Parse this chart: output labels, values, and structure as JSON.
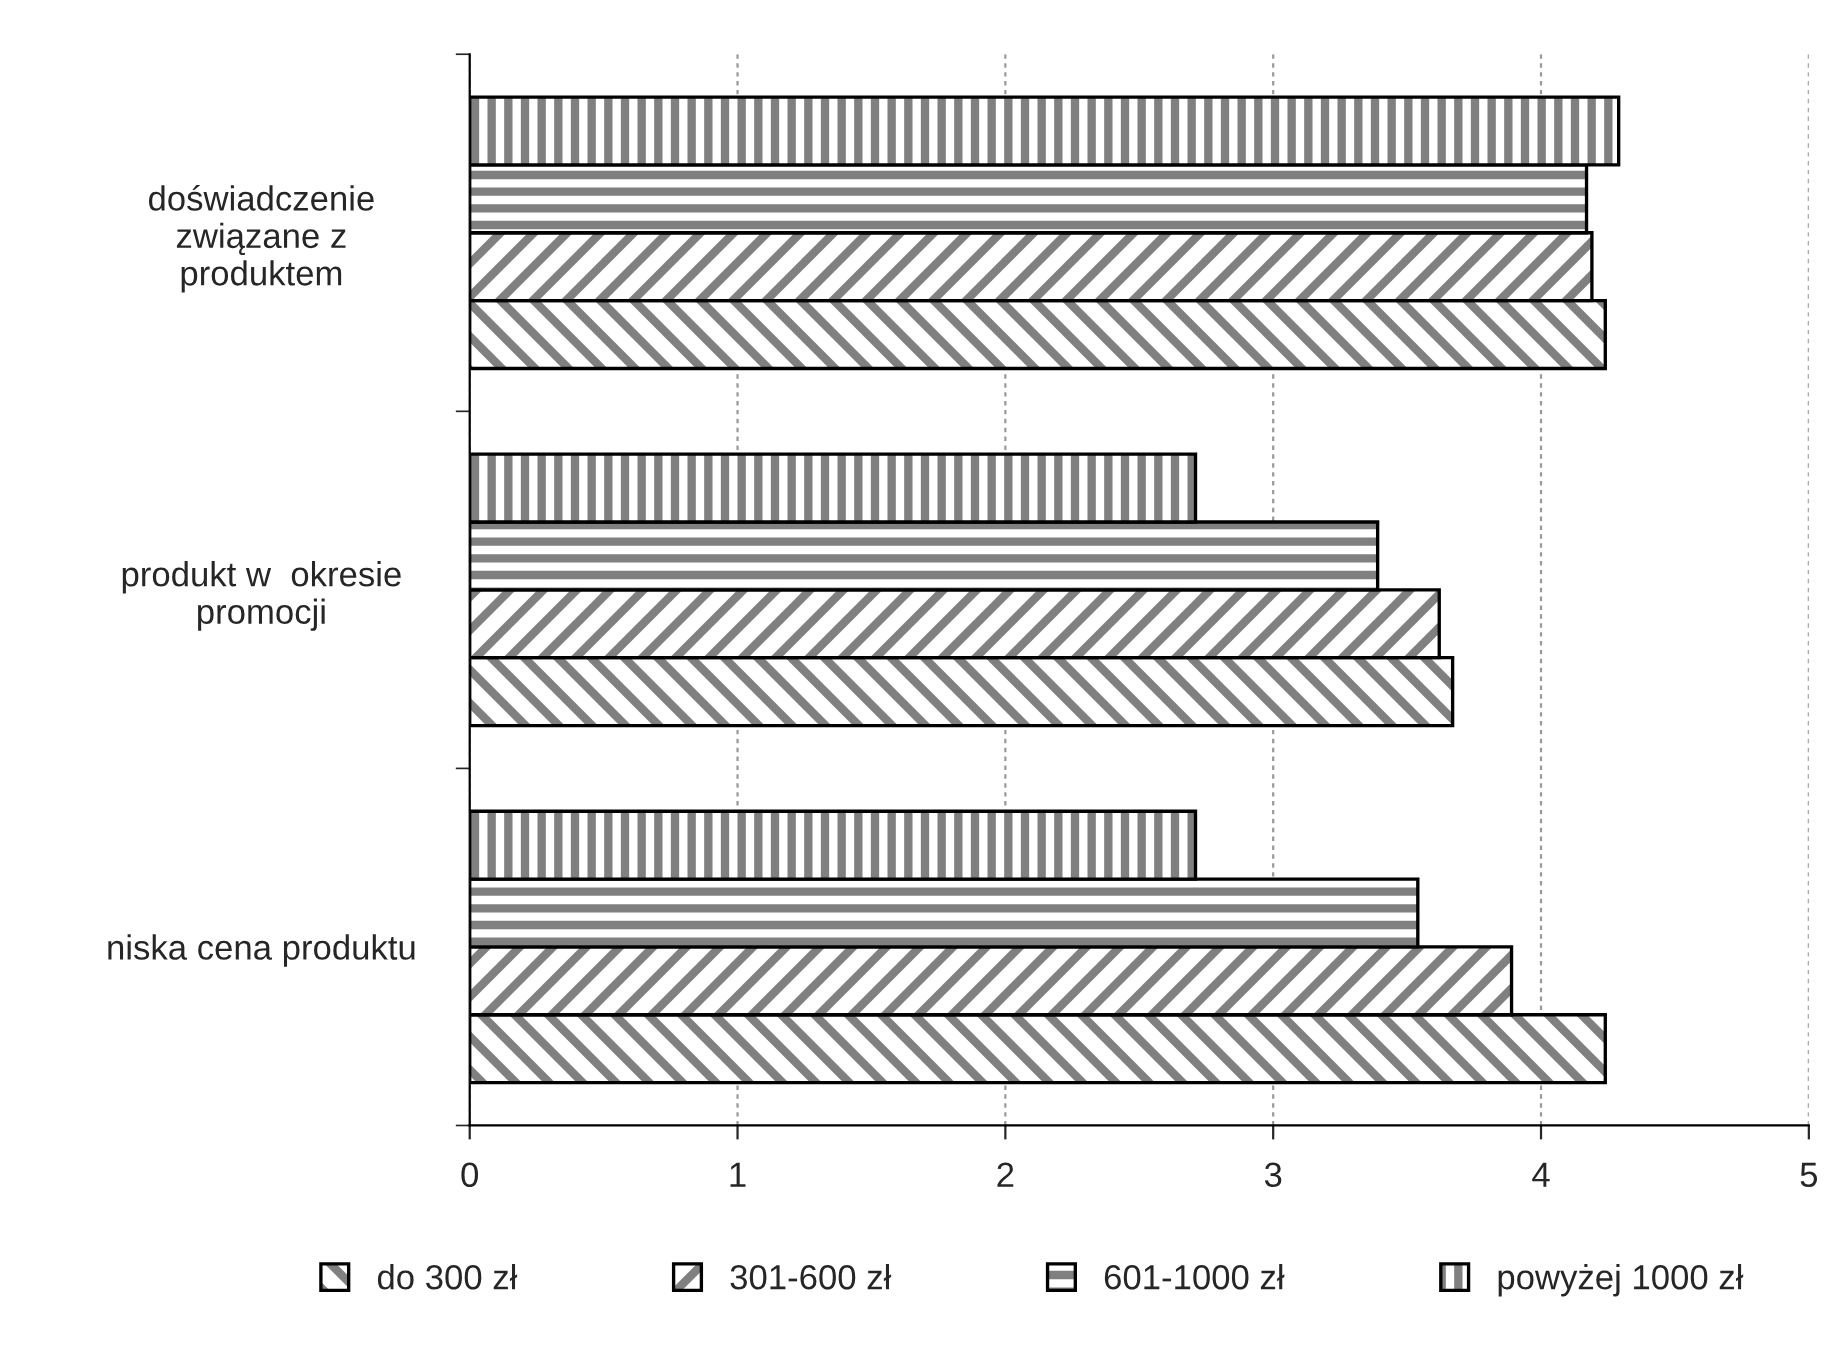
{
  "chart_data": {
    "type": "bar",
    "orientation": "horizontal",
    "categories": [
      "doświadczenie\nzwiązane z\nproduktem",
      "produkt w  okresie\npromocji",
      "niska cena produktu"
    ],
    "series": [
      {
        "name": "do 300 zł",
        "values": [
          4.24,
          3.67,
          4.24
        ]
      },
      {
        "name": "301-600 zł",
        "values": [
          4.19,
          3.62,
          3.89
        ]
      },
      {
        "name": "601-1000 zł",
        "values": [
          4.17,
          3.39,
          3.54
        ]
      },
      {
        "name": "powyżej 1000 zł",
        "values": [
          4.29,
          2.71,
          2.71
        ]
      }
    ],
    "xlim": [
      0,
      5
    ],
    "xticks": [
      0,
      1,
      2,
      3,
      4,
      5
    ],
    "grid": "x",
    "legend": "bottom"
  }
}
